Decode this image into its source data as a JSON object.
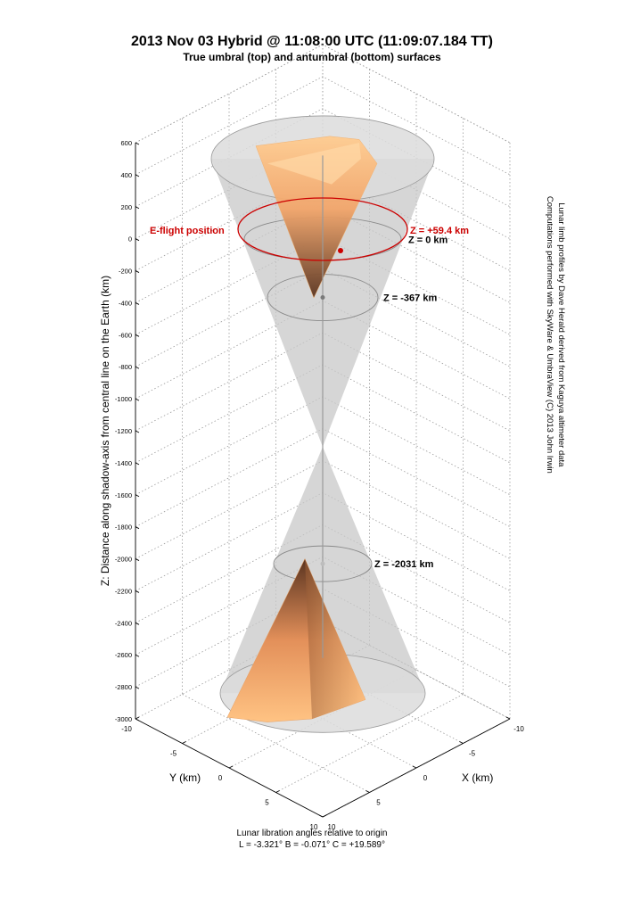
{
  "chart_data": {
    "type": "surface3d",
    "title": "2013 Nov 03 Hybrid @ 11:08:00 UTC (11:09:07.184 TT)",
    "subtitle": "True umbral (top) and antumbral (bottom) surfaces",
    "zlabel": "Z: Distance along shadow-axis from central line on the Earth (km)",
    "xlabel": "X (km)",
    "ylabel": "Y (km)",
    "zlim": [
      -3000,
      600
    ],
    "z_ticks": [
      600,
      400,
      200,
      0,
      -200,
      -400,
      -600,
      -800,
      -1000,
      -1200,
      -1400,
      -1600,
      -1800,
      -2000,
      -2200,
      -2400,
      -2600,
      -2800,
      -3000
    ],
    "x_ticks": [
      -10,
      -5,
      0,
      5,
      10
    ],
    "y_ticks": [
      -10,
      -5,
      0,
      5,
      10
    ],
    "grid": true,
    "cone_vertex_z": -1300,
    "reference_planes": [
      {
        "label": "Z = 0 km",
        "z": 0
      },
      {
        "label": "Z = -367 km",
        "z": -367
      },
      {
        "label": "Z = -2031 km",
        "z": -2031
      }
    ],
    "eflight": {
      "label": "E-flight position",
      "z_label": "Z = +59.4 km",
      "z": 59.4,
      "color": "#cc0000"
    },
    "credit_lines": [
      "Computations performed with SkyWare & UmbraView (C) 2013 John Irwin",
      "Lunar limb profiles by Dave Herald derived from Kaguya altimeter data"
    ],
    "footer": {
      "caption": "Lunar libration angles relative to origin",
      "angles": "L = -3.321°   B = -0.071°   C = +19.589°"
    }
  }
}
